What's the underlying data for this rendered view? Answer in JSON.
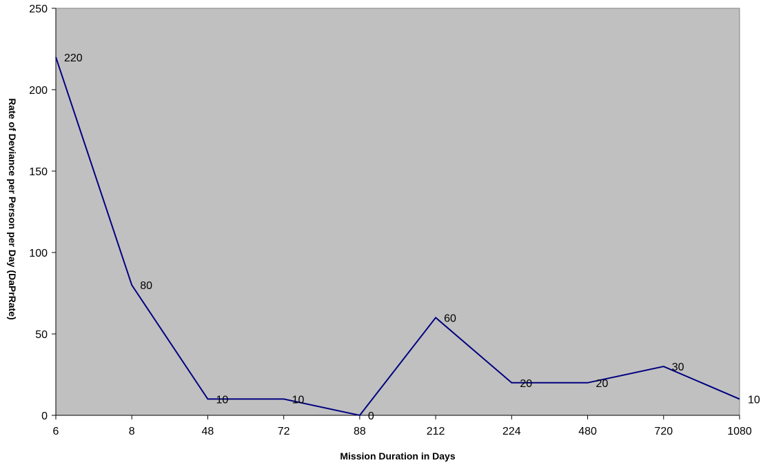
{
  "chart_data": {
    "type": "line",
    "title": "",
    "xlabel": "Mission Duration in Days",
    "ylabel": "Rate of Deviance per Person per Day (DaPrRate)",
    "categories": [
      "6",
      "8",
      "48",
      "72",
      "88",
      "212",
      "224",
      "480",
      "720",
      "1080"
    ],
    "series": [
      {
        "values": [
          220,
          80,
          10,
          10,
          0,
          60,
          20,
          20,
          30,
          10
        ],
        "color": "#000080"
      }
    ],
    "ylim": [
      0,
      250
    ],
    "yticks": [
      0,
      50,
      100,
      150,
      200,
      250
    ],
    "grid": false,
    "legend": "none",
    "plot_background": "#c0c0c0",
    "data_labels": true
  }
}
